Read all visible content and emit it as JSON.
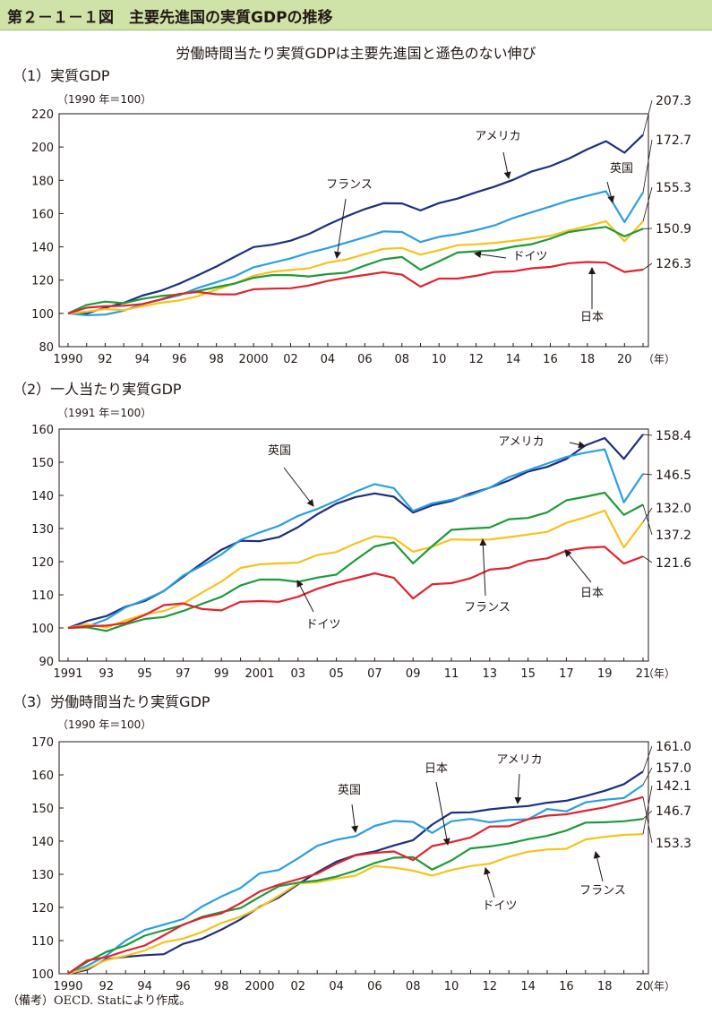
{
  "figure_title": "第２－１－１図　主要先進国の実質GDPの推移",
  "subtitle": "労働時間当たり実質GDPは主要先進国と遜色のない伸び",
  "footnote": "（備考）OECD. Statにより作成。",
  "colors": {
    "header_bg": "#cfe3a8",
    "usa": "#1d2f7f",
    "uk": "#2a9fe0",
    "france": "#f7c21a",
    "germany": "#1e9a3a",
    "japan": "#e0242e"
  },
  "chart_data": [
    {
      "type": "line",
      "panel_title": "（1）実質GDP",
      "unit_label": "（1990 年＝100）",
      "x": [
        1990,
        1991,
        1992,
        1993,
        1994,
        1995,
        1996,
        1997,
        1998,
        1999,
        2000,
        2001,
        2002,
        2003,
        2004,
        2005,
        2006,
        2007,
        2008,
        2009,
        2010,
        2011,
        2012,
        2013,
        2014,
        2015,
        2016,
        2017,
        2018,
        2019,
        2020,
        2021
      ],
      "x_tick_labels": [
        "1990",
        "92",
        "94",
        "96",
        "98",
        "2000",
        "02",
        "04",
        "06",
        "08",
        "10",
        "12",
        "14",
        "16",
        "18",
        "20"
      ],
      "year_suffix": "（年）",
      "ylim": [
        80,
        220
      ],
      "y_ticks": [
        80,
        100,
        120,
        140,
        160,
        180,
        200,
        220
      ],
      "grid": false,
      "series": [
        {
          "name": "アメリカ",
          "key": "usa",
          "end_label": "207.3",
          "values": [
            100,
            99.9,
            103.4,
            106.3,
            110.7,
            113.6,
            117.9,
            122.9,
            128.2,
            134.1,
            139.9,
            141.3,
            143.7,
            147.8,
            153.3,
            158.3,
            162.7,
            166.2,
            166.1,
            161.9,
            166.3,
            169.0,
            172.8,
            176.2,
            180.3,
            185.3,
            188.5,
            193.1,
            198.7,
            203.5,
            196.6,
            207.3
          ]
        },
        {
          "name": "英国",
          "key": "uk",
          "end_label": "172.7",
          "values": [
            100,
            98.9,
            99.3,
            101.6,
            105.6,
            108.2,
            110.9,
            115.3,
            118.7,
            122.4,
            127.7,
            130.4,
            133.1,
            136.5,
            139.3,
            142.5,
            145.8,
            149.3,
            148.9,
            142.9,
            146.0,
            147.7,
            150.0,
            152.9,
            157.3,
            160.8,
            164.2,
            167.9,
            170.7,
            173.4,
            154.9,
            172.7
          ]
        },
        {
          "name": "フランス",
          "key": "france",
          "end_label": "155.3",
          "values": [
            100,
            101.0,
            102.6,
            101.9,
            104.3,
            106.4,
            107.8,
            110.3,
            114.3,
            118.0,
            122.6,
            125.0,
            126.1,
            127.1,
            130.5,
            132.4,
            135.6,
            138.8,
            139.3,
            135.3,
            138.0,
            141.0,
            141.5,
            142.4,
            143.6,
            145.1,
            146.6,
            149.9,
            152.5,
            155.4,
            143.4,
            155.3
          ]
        },
        {
          "name": "ドイツ",
          "key": "germany",
          "end_label": "150.9",
          "values": [
            100,
            105.1,
            107.1,
            106.1,
            108.7,
            110.5,
            111.4,
            113.5,
            115.8,
            118.0,
            121.4,
            123.0,
            123.0,
            122.2,
            123.6,
            124.5,
            128.8,
            132.5,
            133.9,
            126.2,
            131.3,
            136.6,
            137.3,
            137.9,
            140.1,
            141.6,
            144.9,
            148.9,
            150.6,
            152.0,
            146.3,
            150.9
          ]
        },
        {
          "name": "日本",
          "key": "japan",
          "end_label": "126.3",
          "values": [
            100,
            103.4,
            104.3,
            104.6,
            105.6,
            108.4,
            111.7,
            112.9,
            111.5,
            111.4,
            114.5,
            114.9,
            115.1,
            116.8,
            119.5,
            121.5,
            123.1,
            124.8,
            123.3,
            116.1,
            120.9,
            120.9,
            122.6,
            124.9,
            125.3,
            127.1,
            127.9,
            130.2,
            130.9,
            130.5,
            124.9,
            126.3
          ]
        }
      ]
    },
    {
      "type": "line",
      "panel_title": "（2）一人当たり実質GDP",
      "unit_label": "（1991 年＝100）",
      "x": [
        1991,
        1992,
        1993,
        1994,
        1995,
        1996,
        1997,
        1998,
        1999,
        2000,
        2001,
        2002,
        2003,
        2004,
        2005,
        2006,
        2007,
        2008,
        2009,
        2010,
        2011,
        2012,
        2013,
        2014,
        2015,
        2016,
        2017,
        2018,
        2019,
        2020,
        2021
      ],
      "x_tick_labels": [
        "1991",
        "93",
        "95",
        "97",
        "99",
        "2001",
        "03",
        "05",
        "07",
        "09",
        "11",
        "13",
        "15",
        "17",
        "19",
        "21"
      ],
      "year_suffix": "（年）",
      "ylim": [
        90,
        160
      ],
      "y_ticks": [
        90,
        100,
        110,
        120,
        130,
        140,
        150,
        160
      ],
      "grid": false,
      "series": [
        {
          "name": "アメリカ",
          "key": "usa",
          "end_label": "158.4",
          "values": [
            100,
            102.1,
            103.6,
            106.4,
            108.1,
            111.2,
            115.4,
            119.6,
            123.6,
            126.3,
            126.2,
            127.4,
            130.4,
            134.3,
            137.5,
            139.5,
            140.6,
            139.6,
            134.8,
            137.0,
            138.3,
            140.6,
            142.3,
            144.5,
            147.2,
            148.6,
            151.0,
            155.1,
            157.3,
            151.0,
            158.4
          ]
        },
        {
          "name": "英国",
          "key": "uk",
          "end_label": "146.5",
          "values": [
            100,
            100.4,
            102.6,
            106.2,
            108.5,
            111.1,
            115.8,
            118.8,
            122.2,
            126.6,
            128.8,
            130.8,
            133.8,
            135.9,
            138.4,
            141.1,
            143.4,
            142.2,
            135.3,
            137.6,
            138.7,
            140.1,
            142.3,
            145.5,
            147.6,
            149.6,
            151.6,
            152.9,
            153.9,
            137.9,
            146.5
          ]
        },
        {
          "name": "フランス",
          "key": "france",
          "end_label": "132.0",
          "values": [
            100,
            101.1,
            100.1,
            102.3,
            104.1,
            105.1,
            107.3,
            110.7,
            114.0,
            118.1,
            119.2,
            119.5,
            119.7,
            122.0,
            122.9,
            125.5,
            127.7,
            127.1,
            123.0,
            124.5,
            126.7,
            126.6,
            126.7,
            127.4,
            128.2,
            129.0,
            131.7,
            133.4,
            135.4,
            124.3,
            132.0
          ]
        },
        {
          "name": "ドイツ",
          "key": "germany",
          "end_label": "137.2",
          "values": [
            100,
            100.2,
            99.1,
            101.1,
            102.7,
            103.3,
            105.1,
            107.3,
            109.4,
            112.8,
            114.6,
            114.6,
            113.9,
            115.2,
            116.1,
            120.5,
            124.6,
            125.8,
            119.5,
            124.7,
            129.6,
            130.0,
            130.3,
            132.8,
            133.2,
            134.9,
            138.5,
            139.6,
            140.8,
            134.1,
            137.2
          ]
        },
        {
          "name": "日本",
          "key": "japan",
          "end_label": "121.6",
          "values": [
            100,
            100.5,
            100.7,
            101.5,
            103.9,
            106.9,
            107.4,
            105.7,
            105.3,
            107.9,
            108.1,
            107.9,
            109.4,
            111.8,
            113.6,
            115.0,
            116.5,
            115.1,
            108.9,
            113.2,
            113.5,
            115.0,
            117.6,
            118.1,
            120.2,
            121.0,
            123.3,
            124.2,
            124.5,
            119.4,
            121.6
          ]
        }
      ]
    },
    {
      "type": "line",
      "panel_title": "（3）労働時間当たり実質GDP",
      "unit_label": "（1990 年＝100）",
      "x": [
        1990,
        1991,
        1992,
        1993,
        1994,
        1995,
        1996,
        1997,
        1998,
        1999,
        2000,
        2001,
        2002,
        2003,
        2004,
        2005,
        2006,
        2007,
        2008,
        2009,
        2010,
        2011,
        2012,
        2013,
        2014,
        2015,
        2016,
        2017,
        2018,
        2019,
        2020
      ],
      "x_tick_labels": [
        "1990",
        "92",
        "94",
        "96",
        "98",
        "2000",
        "02",
        "04",
        "06",
        "08",
        "10",
        "12",
        "14",
        "16",
        "18",
        "20"
      ],
      "year_suffix": "（年）",
      "ylim": [
        100,
        170
      ],
      "y_ticks": [
        100,
        110,
        120,
        130,
        140,
        150,
        160,
        170
      ],
      "grid": false,
      "series": [
        {
          "name": "アメリカ",
          "key": "usa",
          "end_label": "161.0",
          "values": [
            100,
            101.2,
            104.4,
            105.1,
            105.6,
            105.9,
            109.0,
            110.6,
            113.3,
            116.4,
            120.2,
            123.0,
            127.0,
            130.6,
            133.8,
            135.8,
            136.9,
            138.7,
            140.3,
            145.0,
            148.6,
            148.7,
            149.6,
            150.2,
            150.6,
            151.6,
            152.2,
            153.6,
            155.2,
            157.2,
            161.0
          ]
        },
        {
          "name": "英国",
          "key": "uk",
          "end_label": "157.0",
          "values": [
            100,
            102.4,
            105.5,
            110.0,
            113.2,
            114.8,
            116.5,
            120.3,
            123.3,
            125.9,
            130.3,
            131.3,
            134.8,
            138.6,
            140.4,
            141.5,
            144.6,
            146.1,
            145.8,
            142.5,
            146.0,
            146.7,
            145.7,
            146.4,
            146.6,
            149.7,
            149.0,
            151.7,
            152.5,
            153.0,
            157.0
          ]
        },
        {
          "name": "フランス",
          "key": "france",
          "end_label": "142.1",
          "values": [
            100,
            101.6,
            104.1,
            105.4,
            107.0,
            109.5,
            110.6,
            112.6,
            115.3,
            117.2,
            120.0,
            123.5,
            127.3,
            127.6,
            128.7,
            129.6,
            132.5,
            132.0,
            131.1,
            129.6,
            131.3,
            132.5,
            133.2,
            135.3,
            136.8,
            137.5,
            137.7,
            140.5,
            141.3,
            141.9,
            142.1
          ]
        },
        {
          "name": "ドイツ",
          "key": "germany",
          "end_label": "146.7",
          "values": [
            100,
            103.6,
            106.6,
            108.5,
            111.5,
            113.1,
            114.7,
            117.2,
            118.6,
            119.8,
            123.2,
            126.4,
            127.5,
            128.1,
            129.3,
            131.1,
            133.4,
            135.0,
            135.2,
            131.4,
            134.2,
            137.8,
            138.4,
            139.3,
            140.6,
            141.6,
            143.2,
            145.6,
            145.7,
            146.0,
            146.7
          ]
        },
        {
          "name": "日本",
          "key": "japan",
          "end_label": "153.3",
          "values": [
            100,
            104.0,
            105.0,
            106.9,
            108.5,
            111.6,
            114.8,
            116.9,
            118.2,
            121.3,
            124.8,
            126.9,
            128.5,
            130.2,
            133.2,
            135.7,
            136.5,
            136.9,
            134.3,
            138.5,
            139.7,
            141.1,
            144.4,
            144.5,
            146.6,
            147.7,
            148.1,
            149.2,
            150.2,
            151.7,
            153.3
          ]
        }
      ],
      "labels": {
        "usa": "アメリカ",
        "uk": "英国",
        "japan": "日本",
        "germany": "ドイツ",
        "france": "フランス"
      }
    }
  ]
}
